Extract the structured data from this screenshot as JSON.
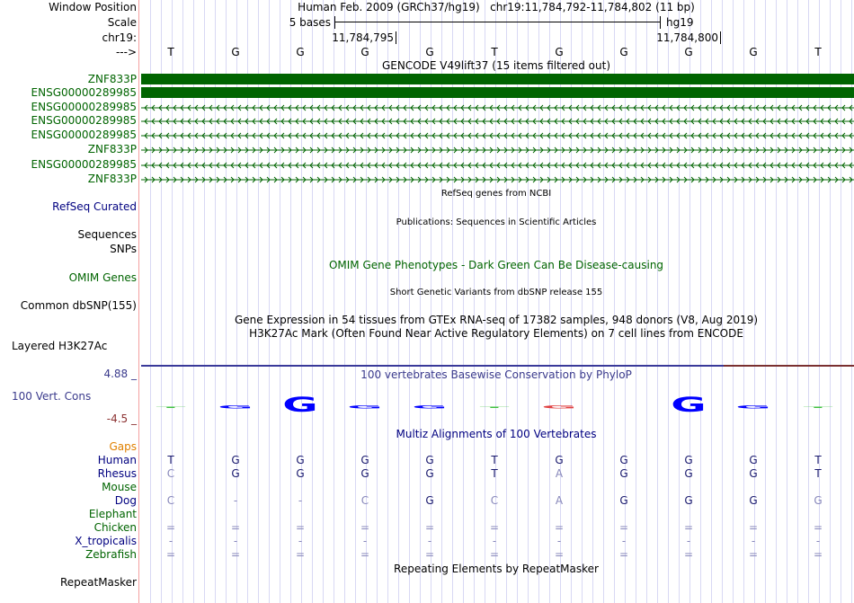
{
  "header": {
    "labels": {
      "window_position": "Window Position",
      "scale": "Scale",
      "chrom": "chr19:",
      "strand": "--->"
    },
    "position_text": "Human Feb. 2009 (GRCh37/hg19)   chr19:11,784,792-11,784,802 (11 bp)",
    "scale_label": "5 bases",
    "assembly": "hg19",
    "tick_1": "11,784,795",
    "tick_2": "11,784,800"
  },
  "bases": [
    "T",
    "G",
    "G",
    "G",
    "G",
    "T",
    "G",
    "G",
    "G",
    "G",
    "T"
  ],
  "gencode": {
    "title": "GENCODE V49lift37 (15 items filtered out)",
    "tracks": [
      {
        "name": "ZNF833P",
        "style": "solid"
      },
      {
        "name": "ENSG00000289985",
        "style": "solid"
      },
      {
        "name": "ENSG00000289985",
        "style": "minus"
      },
      {
        "name": "ENSG00000289985",
        "style": "minus"
      },
      {
        "name": "ENSG00000289985",
        "style": "minus"
      },
      {
        "name": "ZNF833P",
        "style": "plus"
      },
      {
        "name": "ENSG00000289985",
        "style": "minus"
      },
      {
        "name": "ZNF833P",
        "style": "plus"
      }
    ]
  },
  "tracks": {
    "refseq_title": "RefSeq genes from NCBI",
    "refseq_label": "RefSeq Curated",
    "pubs_title": "Publications: Sequences in Scientific Articles",
    "sequences_label": "Sequences",
    "snps_label": "SNPs",
    "omim_title": "OMIM Gene Phenotypes - Dark Green Can Be Disease-causing",
    "omim_label": "OMIM Genes",
    "dbsnp_title": "Short Genetic Variants from dbSNP release 155",
    "dbsnp_label": "Common dbSNP(155)",
    "gtex_title": "Gene Expression in 54 tissues from GTEx RNA-seq of 17382 samples, 948 donors (V8, Aug 2019)",
    "h3k27ac_title": "H3K27Ac Mark (Often Found Near Active Regulatory Elements) on 7 cell lines from ENCODE",
    "h3k27ac_label": "Layered H3K27Ac",
    "phylop_title": "100 vertebrates Basewise Conservation by PhyloP",
    "phylop_label": "100 Vert. Cons",
    "phylop_max": "4.88 _",
    "phylop_min": "-4.5 _",
    "multiz_title": "Multiz Alignments of 100 Vertebrates",
    "gaps_label": "Gaps",
    "repeat_title": "Repeating Elements by RepeatMasker",
    "repeat_label": "RepeatMasker"
  },
  "phylop": [
    {
      "letter": "T",
      "score": 0.1,
      "color": "#40c040"
    },
    {
      "letter": "G",
      "score": 0.3,
      "color": "#0000ff"
    },
    {
      "letter": "G",
      "score": 1.6,
      "color": "#0000ff"
    },
    {
      "letter": "G",
      "score": 0.3,
      "color": "#0000ff"
    },
    {
      "letter": "G",
      "score": 0.3,
      "color": "#0000ff"
    },
    {
      "letter": "T",
      "score": 0.1,
      "color": "#40c040"
    },
    {
      "letter": "G",
      "score": 0.3,
      "color": "#e04040"
    },
    {
      "letter": "G",
      "score": 0,
      "color": "#0000ff"
    },
    {
      "letter": "G",
      "score": 1.6,
      "color": "#0000ff"
    },
    {
      "letter": "G",
      "score": 0.3,
      "color": "#0000ff"
    },
    {
      "letter": "T",
      "score": 0.1,
      "color": "#40c040"
    }
  ],
  "alignment": [
    {
      "species": "Human",
      "color": "navy",
      "bases": [
        "T",
        "G",
        "G",
        "G",
        "G",
        "T",
        "G",
        "G",
        "G",
        "G",
        "T"
      ]
    },
    {
      "species": "Rhesus",
      "color": "navy",
      "bases": [
        "C",
        "G",
        "G",
        "G",
        "G",
        "T",
        "A",
        "G",
        "G",
        "G",
        "T"
      ]
    },
    {
      "species": "Mouse",
      "color": "green",
      "bases": []
    },
    {
      "species": "Dog",
      "color": "navy",
      "bases": [
        "C",
        "-",
        "-",
        "C",
        "G",
        "C",
        "A",
        "G",
        "G",
        "G",
        "G"
      ]
    },
    {
      "species": "Elephant",
      "color": "green",
      "bases": []
    },
    {
      "species": "Chicken",
      "color": "green",
      "bases": [
        "=",
        "=",
        "=",
        "=",
        "=",
        "=",
        "=",
        "=",
        "=",
        "=",
        "="
      ]
    },
    {
      "species": "X_tropicalis",
      "color": "navy",
      "bases": [
        "-",
        "-",
        "-",
        "-",
        "-",
        "-",
        "-",
        "-",
        "-",
        "-",
        "-"
      ]
    },
    {
      "species": "Zebrafish",
      "color": "green",
      "bases": [
        "=",
        "=",
        "=",
        "=",
        "=",
        "=",
        "=",
        "=",
        "=",
        "=",
        "="
      ]
    }
  ]
}
